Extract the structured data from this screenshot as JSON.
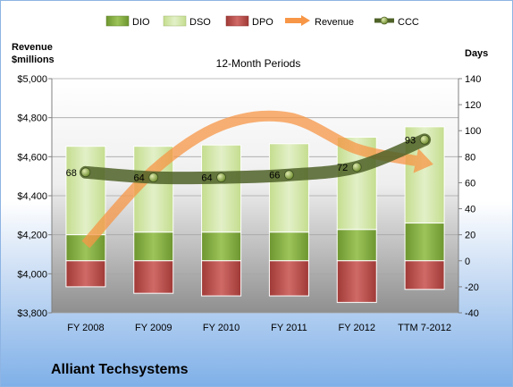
{
  "company_name": "Alliant Techsystems",
  "chart_data": {
    "type": "bar",
    "title": "12-Month Periods",
    "categories": [
      "FY 2008",
      "FY 2009",
      "FY 2010",
      "FY 2011",
      "FY 2012",
      "TTM 7-2012"
    ],
    "left_axis": {
      "label_line1": "Revenue",
      "label_line2": "$millions",
      "range": [
        3800,
        5000
      ],
      "ticks": [
        3800,
        4000,
        4200,
        4400,
        4600,
        4800,
        5000
      ],
      "tick_labels": [
        "$3,800",
        "$4,000",
        "$4,200",
        "$4,400",
        "$4,600",
        "$4,800",
        "$5,000"
      ]
    },
    "right_axis": {
      "label": "Days",
      "range": [
        -40,
        140
      ],
      "ticks": [
        -40,
        -20,
        0,
        20,
        40,
        60,
        80,
        100,
        120,
        140
      ],
      "tick_labels": [
        "-40",
        "-20",
        "0",
        "20",
        "40",
        "60",
        "80",
        "100",
        "120",
        "140"
      ]
    },
    "grid": true,
    "legend_position": "top",
    "legend": [
      "DIO",
      "DSO",
      "DPO",
      "Revenue",
      "CCC"
    ],
    "series": [
      {
        "name": "DIO",
        "axis": "right",
        "stacked": true,
        "color": "#7da63c",
        "values": [
          20,
          22,
          22,
          22,
          24,
          29
        ]
      },
      {
        "name": "DSO",
        "axis": "right",
        "stacked": true,
        "color": "#d6e8b0",
        "values": [
          68,
          66,
          67,
          68,
          71,
          74
        ]
      },
      {
        "name": "DPO",
        "axis": "right",
        "stacked": true,
        "color": "#c0504d",
        "values": [
          -20,
          -25,
          -27,
          -27,
          -32,
          -22
        ]
      },
      {
        "name": "Revenue",
        "axis": "left",
        "type": "line",
        "color": "#f79646",
        "values": [
          4150,
          4530,
          4760,
          4800,
          4640,
          4570
        ]
      },
      {
        "name": "CCC",
        "axis": "right",
        "type": "line",
        "color": "#4f6228",
        "values": [
          68,
          64,
          64,
          66,
          72,
          93
        ]
      }
    ],
    "data_labels": [
      "68",
      "64",
      "64",
      "66",
      "72",
      "93"
    ]
  }
}
